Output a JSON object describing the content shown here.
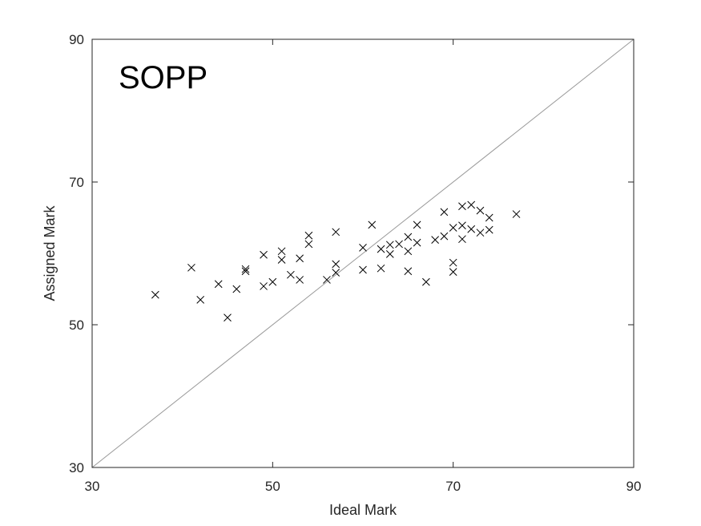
{
  "chart_data": {
    "type": "scatter",
    "title": "",
    "panel_label": "SOPP",
    "xlabel": "Ideal Mark",
    "ylabel": "Assigned Mark",
    "xlim": [
      30,
      90
    ],
    "ylim": [
      30,
      90
    ],
    "xticks": [
      30,
      50,
      70,
      90
    ],
    "yticks": [
      30,
      50,
      70,
      90
    ],
    "xtick_labels": [
      "30",
      "50",
      "70",
      "90"
    ],
    "ytick_labels": [
      "30",
      "50",
      "70",
      "90"
    ],
    "grid": false,
    "marker": "x",
    "colors": {
      "marker": "#000000",
      "reference_line": "#999999",
      "axes": "#262626"
    },
    "reference_line": {
      "from": [
        30,
        30
      ],
      "to": [
        90,
        90
      ]
    },
    "points": [
      [
        37,
        54.2
      ],
      [
        41,
        58
      ],
      [
        42,
        53.5
      ],
      [
        44,
        55.7
      ],
      [
        45,
        51
      ],
      [
        46,
        55
      ],
      [
        47,
        57.8
      ],
      [
        47,
        57.5
      ],
      [
        49,
        59.8
      ],
      [
        49,
        55.4
      ],
      [
        50,
        56
      ],
      [
        51,
        60.3
      ],
      [
        51,
        59.1
      ],
      [
        52,
        57
      ],
      [
        53,
        59.3
      ],
      [
        53,
        56.3
      ],
      [
        54,
        62.5
      ],
      [
        54,
        61.3
      ],
      [
        56,
        56.3
      ],
      [
        57,
        63
      ],
      [
        57,
        58.5
      ],
      [
        57,
        57.3
      ],
      [
        60,
        60.8
      ],
      [
        60,
        57.7
      ],
      [
        61,
        64
      ],
      [
        62,
        60.6
      ],
      [
        62,
        57.9
      ],
      [
        63,
        61.2
      ],
      [
        63,
        59.9
      ],
      [
        64,
        61.3
      ],
      [
        65,
        62.3
      ],
      [
        65,
        60.3
      ],
      [
        65,
        57.5
      ],
      [
        66,
        64
      ],
      [
        66,
        61.5
      ],
      [
        67,
        56
      ],
      [
        68,
        61.9
      ],
      [
        69,
        65.8
      ],
      [
        69,
        62.4
      ],
      [
        70,
        63.6
      ],
      [
        70,
        58.7
      ],
      [
        70,
        57.4
      ],
      [
        71,
        66.6
      ],
      [
        71,
        63.9
      ],
      [
        71,
        62
      ],
      [
        72,
        66.8
      ],
      [
        72,
        63.4
      ],
      [
        73,
        66
      ],
      [
        73,
        62.9
      ],
      [
        74,
        65
      ],
      [
        74,
        63.3
      ],
      [
        77,
        65.5
      ]
    ]
  }
}
